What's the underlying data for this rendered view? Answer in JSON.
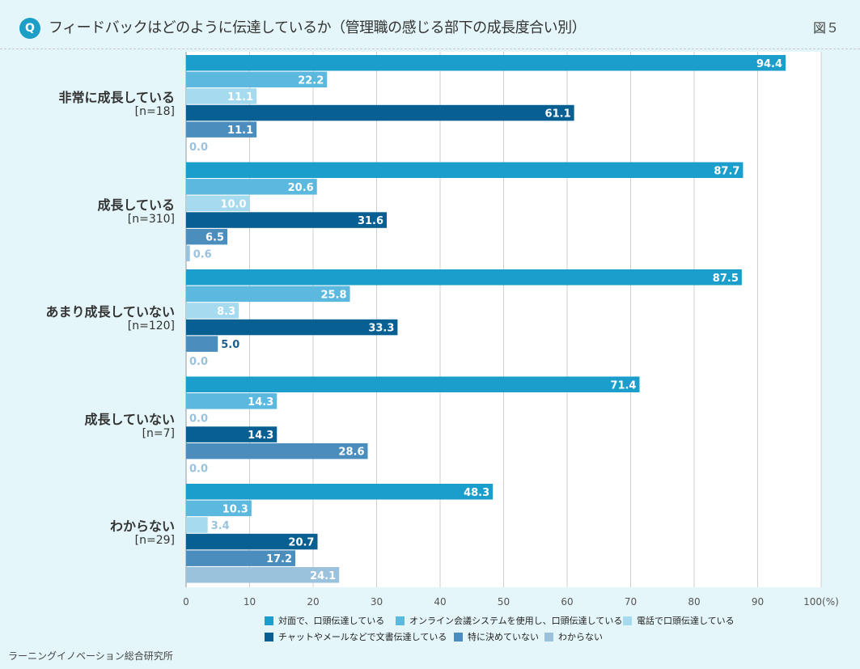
{
  "header": {
    "q_badge": "Q",
    "title": "フィードバックはどのように伝達しているか（管理職の感じる部下の成長度合い別）",
    "figure_no": "図５"
  },
  "chart_data": {
    "type": "bar",
    "orientation": "horizontal",
    "title": "フィードバックはどのように伝達しているか（管理職の感じる部下の成長度合い別）",
    "xlabel": "",
    "ylabel": "",
    "xlim": [
      0,
      100
    ],
    "x_ticks": [
      "0",
      "10",
      "20",
      "30",
      "40",
      "50",
      "60",
      "70",
      "80",
      "90",
      "100(%)"
    ],
    "categories": [
      {
        "name": "非常に成長している",
        "n": "[n=18]"
      },
      {
        "name": "成長している",
        "n": "[n=310]"
      },
      {
        "name": "あまり成長していない",
        "n": "[n=120]"
      },
      {
        "name": "成長していない",
        "n": "[n=7]"
      },
      {
        "name": "わからない",
        "n": "[n=29]"
      }
    ],
    "series": [
      {
        "name": "対面で、口頭伝達している",
        "color": "#1b9ecb",
        "values": [
          94.4,
          87.7,
          87.5,
          71.4,
          48.3
        ],
        "labels": [
          "94.4",
          "87.7",
          "87.5",
          "71.4",
          "48.3"
        ]
      },
      {
        "name": "オンライン会議システムを使用し、口頭伝達している",
        "color": "#5bb9df",
        "values": [
          22.2,
          20.6,
          25.8,
          14.3,
          10.3
        ],
        "labels": [
          "22.2",
          "20.6",
          "25.8",
          "14.3",
          "10.3"
        ]
      },
      {
        "name": "電話で口頭伝達している",
        "color": "#a6dbef",
        "values": [
          11.1,
          10.0,
          8.3,
          0.0,
          3.4
        ],
        "labels": [
          "11.1",
          "10.0",
          "8.3",
          "0.0",
          "3.4"
        ]
      },
      {
        "name": "チャットやメールなどで文書伝達している",
        "color": "#075f92",
        "values": [
          61.1,
          31.6,
          33.3,
          14.3,
          20.7
        ],
        "labels": [
          "61.1",
          "31.6",
          "33.3",
          "14.3",
          "20.7"
        ]
      },
      {
        "name": "特に決めていない",
        "color": "#4b8ebe",
        "values": [
          11.1,
          6.5,
          5.0,
          28.6,
          17.2
        ],
        "labels": [
          "11.1",
          "6.5",
          "5.0",
          "28.6",
          "17.2"
        ]
      },
      {
        "name": "わからない",
        "color": "#9ac2dc",
        "values": [
          0.0,
          0.6,
          0.0,
          0.0,
          24.1
        ],
        "labels": [
          "0.0",
          "0.6",
          "0.0",
          "0.0",
          "24.1"
        ]
      }
    ],
    "legend_position": "bottom"
  },
  "footer": {
    "source": "ラーニングイノベーション総合研究所"
  }
}
